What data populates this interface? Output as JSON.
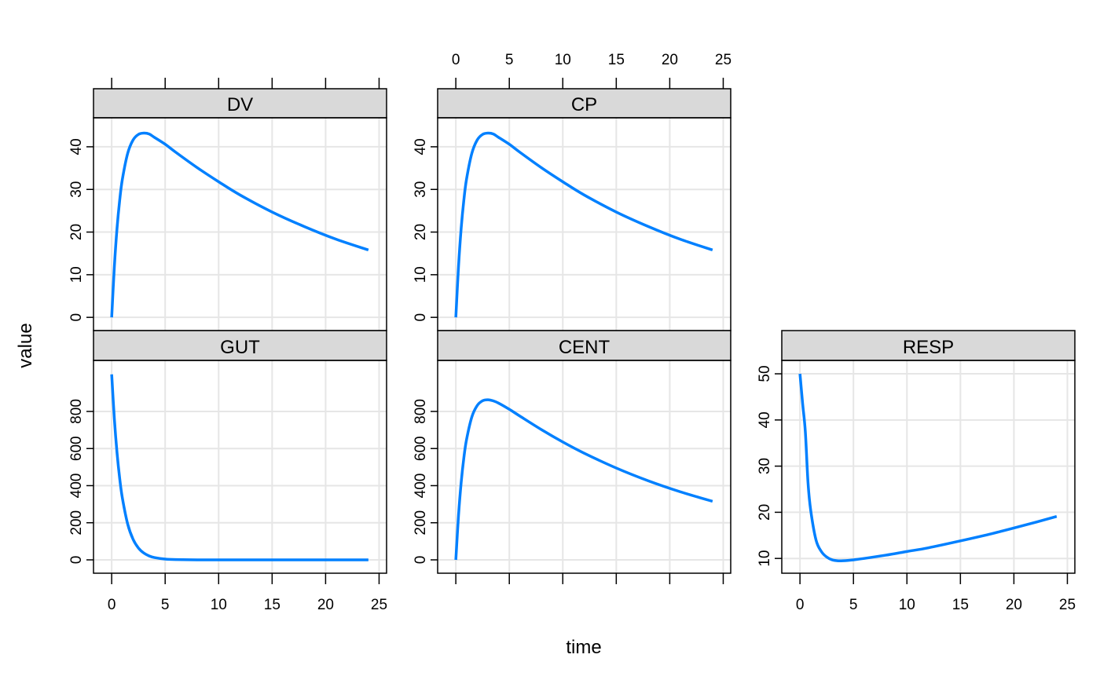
{
  "chart_data": {
    "type": "line",
    "xlabel": "time",
    "ylabel": "value",
    "line_color": "#0080ff",
    "strip_color": "#d9d9d9",
    "grid": true,
    "x_ticks": [
      0,
      5,
      10,
      15,
      20,
      25
    ],
    "xlim": [
      -1.7,
      25.7
    ],
    "x": [
      0,
      0.25,
      0.5,
      0.75,
      1,
      1.5,
      2,
      2.5,
      3,
      3.5,
      4,
      5,
      6,
      8,
      10,
      12,
      15,
      18,
      21,
      24
    ],
    "panels": [
      {
        "name": "DV",
        "ylim": [
          -3.1,
          46.8
        ],
        "y_ticks": [
          0,
          10,
          20,
          30,
          40
        ],
        "values": [
          0,
          11.9,
          20.9,
          27.5,
          32.4,
          38.5,
          41.6,
          42.9,
          43.2,
          43.0,
          42.2,
          40.6,
          38.7,
          35.1,
          31.8,
          28.7,
          24.7,
          21.3,
          18.3,
          15.8
        ]
      },
      {
        "name": "CP",
        "ylim": [
          -3.1,
          46.8
        ],
        "y_ticks": [
          0,
          10,
          20,
          30,
          40
        ],
        "values": [
          0,
          11.9,
          20.9,
          27.5,
          32.4,
          38.5,
          41.6,
          42.9,
          43.2,
          43.0,
          42.2,
          40.6,
          38.7,
          35.1,
          31.8,
          28.7,
          24.7,
          21.3,
          18.3,
          15.8
        ]
      },
      {
        "name": "GUT",
        "ylim": [
          -72,
          1075
        ],
        "y_ticks": [
          0,
          200,
          400,
          600,
          800
        ],
        "values": [
          1000,
          759.6,
          576.9,
          438.2,
          332.9,
          192.0,
          110.8,
          63.9,
          36.9,
          21.3,
          12.3,
          4.1,
          1.4,
          0.2,
          0,
          0,
          0,
          0,
          0,
          0
        ]
      },
      {
        "name": "CENT",
        "ylim": [
          -72,
          1075
        ],
        "y_ticks": [
          0,
          200,
          400,
          600,
          800
        ],
        "values": [
          0,
          238.9,
          417.4,
          550.0,
          647.7,
          770.7,
          831.8,
          857.6,
          863.0,
          857.0,
          844.8,
          811.6,
          774.6,
          702.1,
          635.4,
          574.9,
          494.9,
          425.9,
          366.6,
          315.5
        ]
      },
      {
        "name": "RESP",
        "ylim": [
          6.8,
          52.9
        ],
        "y_ticks": [
          10,
          20,
          30,
          40,
          50
        ],
        "values": [
          50,
          43.5,
          37.5,
          26.5,
          20.5,
          14.0,
          11.5,
          10.3,
          9.7,
          9.5,
          9.5,
          9.7,
          10.0,
          10.7,
          11.5,
          12.3,
          13.8,
          15.4,
          17.2,
          19.1
        ]
      }
    ]
  }
}
